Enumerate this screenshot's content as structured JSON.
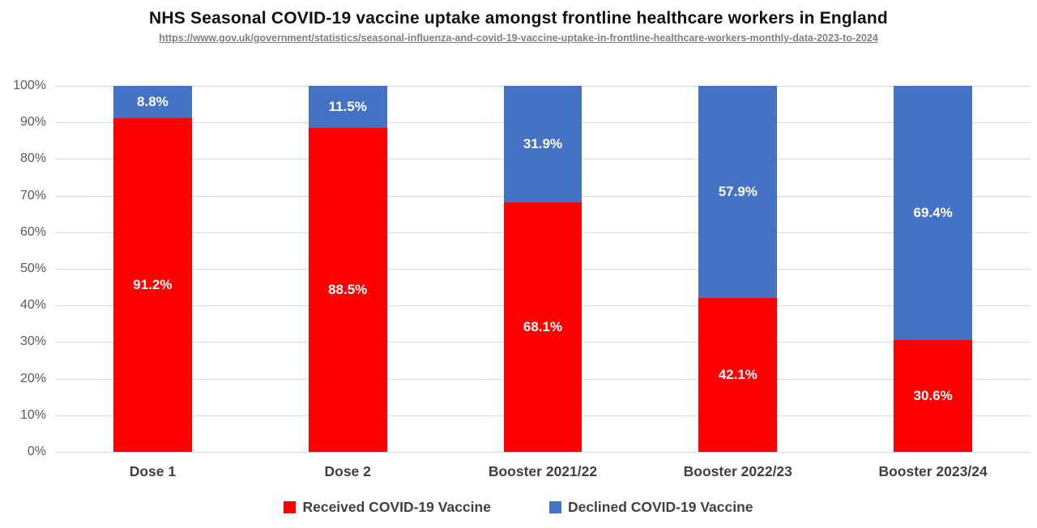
{
  "header": {
    "title": "NHS Seasonal COVID-19 vaccine uptake amongst frontline healthcare workers in England",
    "source_url": "https://www.gov.uk/government/statistics/seasonal-influenza-and-covid-19-vaccine-uptake-in-frontline-healthcare-workers-monthly-data-2023-to-2024"
  },
  "chart_data": {
    "type": "bar",
    "stacked": true,
    "orientation": "vertical",
    "title": "NHS Seasonal COVID-19 vaccine uptake amongst frontline healthcare workers in England",
    "categories": [
      "Dose 1",
      "Dose 2",
      "Booster 2021/22",
      "Booster 2022/23",
      "Booster 2023/24"
    ],
    "series": [
      {
        "name": "Received COVID-19 Vaccine",
        "color": "#FF0000",
        "values": [
          91.2,
          88.5,
          68.1,
          42.1,
          30.6
        ]
      },
      {
        "name": "Declined COVID-19 Vaccine",
        "color": "#4472C4",
        "values": [
          8.8,
          11.5,
          31.9,
          57.9,
          69.4
        ]
      }
    ],
    "xlabel": "",
    "ylabel": "",
    "ylim": [
      0,
      100
    ],
    "ytick_step": 10,
    "ytick_suffix": "%",
    "grid": true,
    "legend_position": "bottom",
    "data_labels": {
      "show": true,
      "color": "#ffffff",
      "decimals": 1,
      "suffix": "%"
    }
  },
  "style": {
    "grid_color": "#d9d9d9",
    "axis_text_color": "#595959",
    "category_text_color": "#404040",
    "legend_text_color": "#404040"
  }
}
